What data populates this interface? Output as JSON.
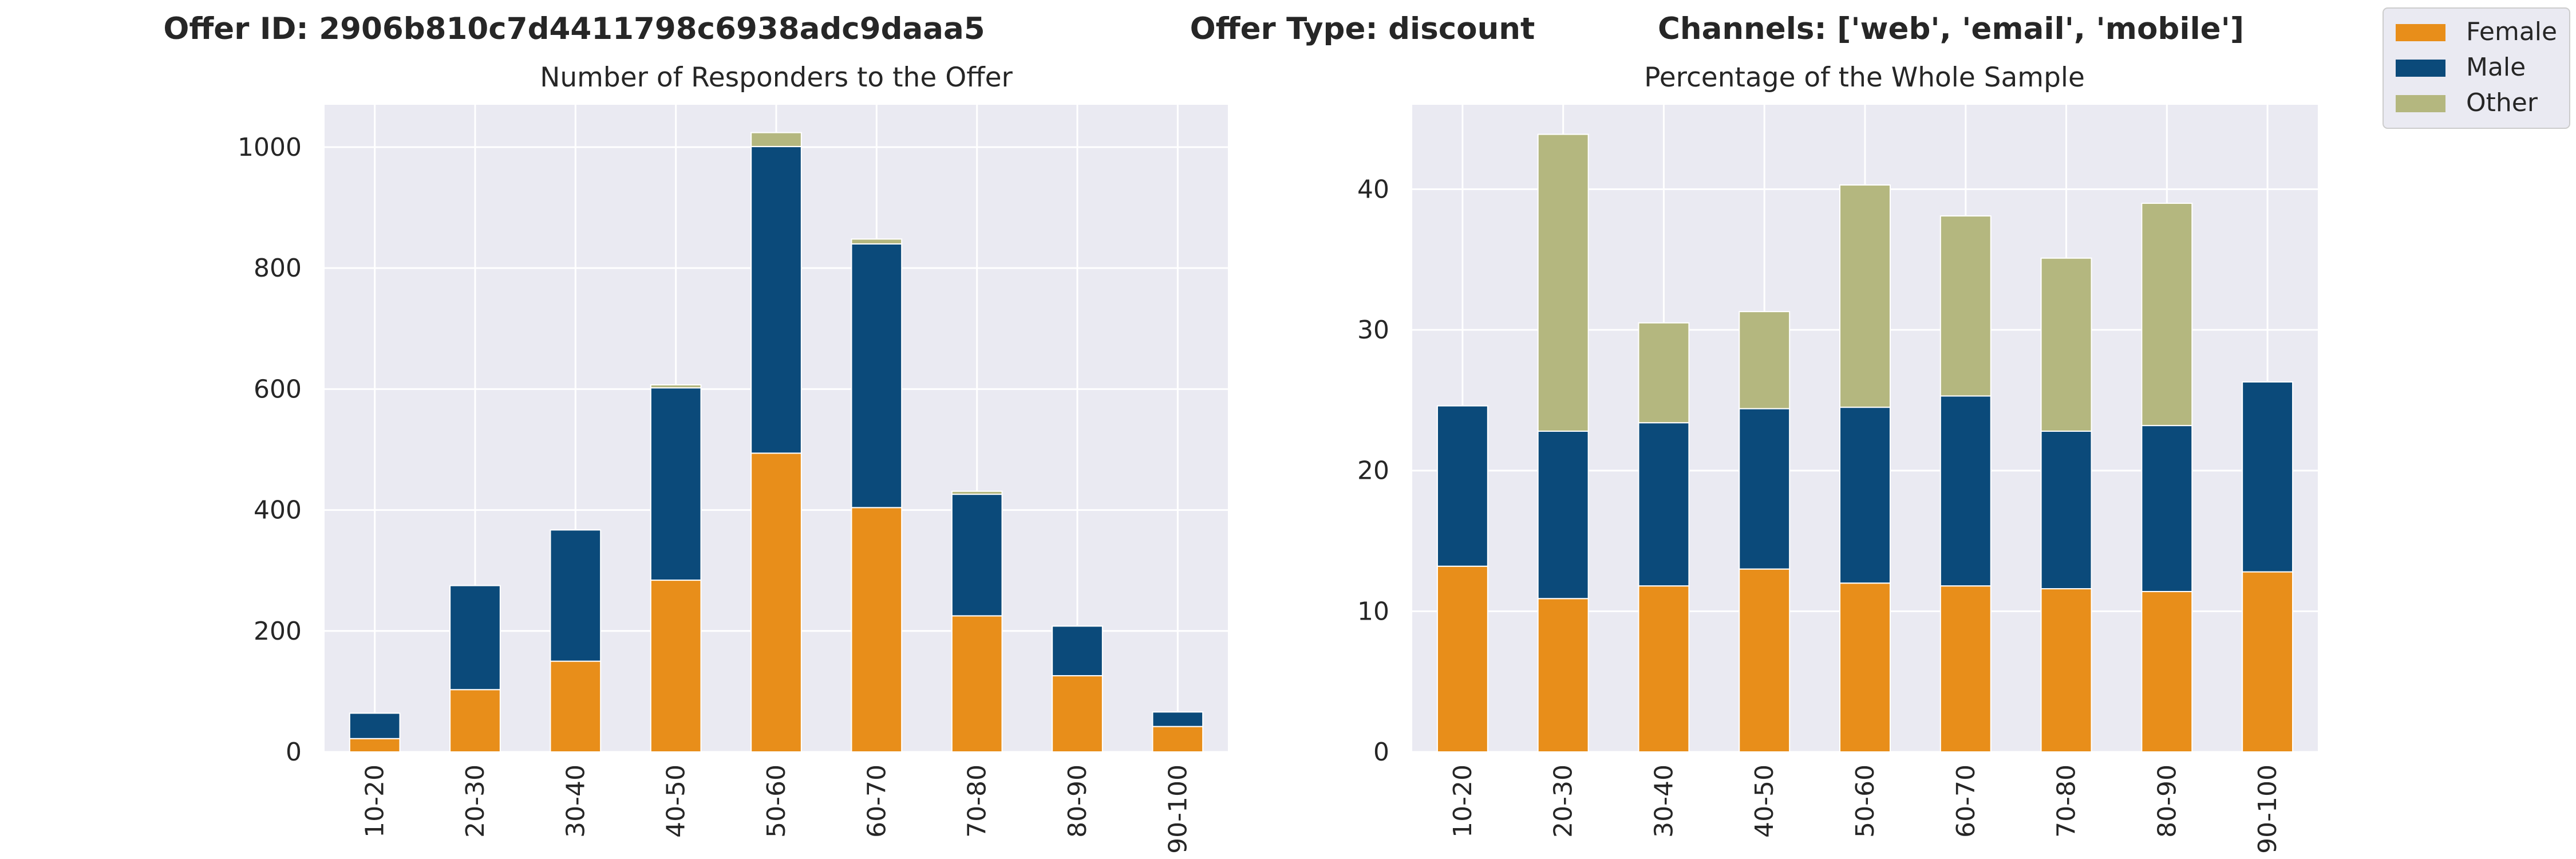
{
  "header": {
    "offer_id": "Offer ID: 2906b810c7d4411798c6938adc9daaa5",
    "offer_type": "Offer Type: discount",
    "channels": "Channels: ['web', 'email', 'mobile']"
  },
  "legend": {
    "items": [
      "Female",
      "Male",
      "Other"
    ]
  },
  "colors": {
    "Female": "#e88e1a",
    "Male": "#0b4a7a",
    "Other": "#b4b77f",
    "plot_bg": "#eaeaf2",
    "grid": "#ffffff"
  },
  "chart_data": [
    {
      "type": "bar",
      "stacked": true,
      "title": "Number of Responders to the Offer",
      "xlabel": "",
      "ylabel": "",
      "categories": [
        "10-20",
        "20-30",
        "30-40",
        "40-50",
        "50-60",
        "60-70",
        "70-80",
        "80-90",
        "90-100"
      ],
      "series": [
        {
          "name": "Female",
          "values": [
            22,
            103,
            150,
            284,
            494,
            404,
            225,
            126,
            42
          ]
        },
        {
          "name": "Male",
          "values": [
            42,
            172,
            217,
            318,
            507,
            436,
            201,
            82,
            24
          ]
        },
        {
          "name": "Other",
          "values": [
            0,
            0,
            0,
            5,
            23,
            8,
            5,
            0,
            0
          ]
        }
      ],
      "ylim": [
        0,
        1070
      ],
      "yticks": [
        0,
        200,
        400,
        600,
        800,
        1000
      ],
      "grid": true
    },
    {
      "type": "bar",
      "stacked": true,
      "title": "Percentage of the Whole Sample",
      "xlabel": "",
      "ylabel": "",
      "categories": [
        "10-20",
        "20-30",
        "30-40",
        "40-50",
        "50-60",
        "60-70",
        "70-80",
        "80-90",
        "90-100"
      ],
      "series": [
        {
          "name": "Female",
          "values": [
            13.2,
            10.9,
            11.8,
            13.0,
            12.0,
            11.8,
            11.6,
            11.4,
            12.8
          ]
        },
        {
          "name": "Male",
          "values": [
            11.4,
            11.9,
            11.6,
            11.4,
            12.5,
            13.5,
            11.2,
            11.8,
            13.5
          ]
        },
        {
          "name": "Other",
          "values": [
            0,
            21.1,
            7.1,
            6.9,
            15.8,
            12.8,
            12.3,
            15.8,
            0
          ]
        }
      ],
      "ylim": [
        0,
        46
      ],
      "yticks": [
        0,
        10,
        20,
        30,
        40
      ],
      "grid": true
    }
  ]
}
